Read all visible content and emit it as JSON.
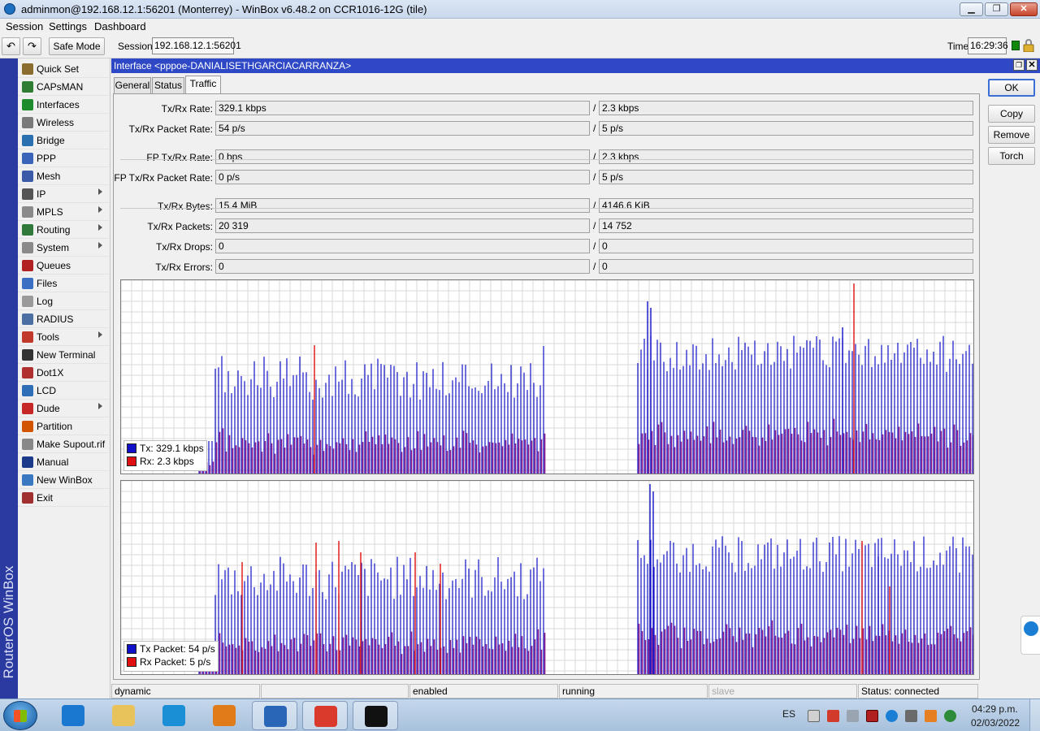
{
  "window": {
    "title": "adminmon@192.168.12.1:56201 (Monterrey) - WinBox v6.48.2 on CCR1016-12G (tile)",
    "min_label": "▁",
    "max_label": "❐",
    "close_label": "✕"
  },
  "menu": {
    "items": [
      "Session",
      "Settings",
      "Dashboard"
    ]
  },
  "toolbar": {
    "undo_label": "↶",
    "redo_label": "↷",
    "safe_mode_label": "Safe Mode",
    "session_label": "Session:",
    "session_value": "192.168.12.1:56201",
    "time_label": "Time:",
    "time_value": "16:29:36"
  },
  "brand": "RouterOS WinBox",
  "sidebar": {
    "items": [
      {
        "label": "Quick Set",
        "icon": "wand-icon",
        "color": "#8a6d2f",
        "submenu": false
      },
      {
        "label": "CAPsMAN",
        "icon": "capsman-icon",
        "color": "#2e7d32",
        "submenu": false
      },
      {
        "label": "Interfaces",
        "icon": "interfaces-icon",
        "color": "#1e8c2c",
        "submenu": false
      },
      {
        "label": "Wireless",
        "icon": "wireless-icon",
        "color": "#7a7a7a",
        "submenu": false
      },
      {
        "label": "Bridge",
        "icon": "bridge-icon",
        "color": "#2a6fb0",
        "submenu": false
      },
      {
        "label": "PPP",
        "icon": "ppp-icon",
        "color": "#3a64b8",
        "submenu": false
      },
      {
        "label": "Mesh",
        "icon": "mesh-icon",
        "color": "#3b5ba8",
        "submenu": false
      },
      {
        "label": "IP",
        "icon": "ip-icon",
        "color": "#555555",
        "submenu": true
      },
      {
        "label": "MPLS",
        "icon": "mpls-icon",
        "color": "#8a8a8a",
        "submenu": true
      },
      {
        "label": "Routing",
        "icon": "routing-icon",
        "color": "#2f7a3a",
        "submenu": true
      },
      {
        "label": "System",
        "icon": "system-icon",
        "color": "#8a8a8a",
        "submenu": true
      },
      {
        "label": "Queues",
        "icon": "queues-icon",
        "color": "#b22222",
        "submenu": false
      },
      {
        "label": "Files",
        "icon": "files-icon",
        "color": "#3a6fc4",
        "submenu": false
      },
      {
        "label": "Log",
        "icon": "log-icon",
        "color": "#9a9a9a",
        "submenu": false
      },
      {
        "label": "RADIUS",
        "icon": "radius-icon",
        "color": "#4a6fa0",
        "submenu": false
      },
      {
        "label": "Tools",
        "icon": "tools-icon",
        "color": "#c0392b",
        "submenu": true
      },
      {
        "label": "New Terminal",
        "icon": "terminal-icon",
        "color": "#333333",
        "submenu": false
      },
      {
        "label": "Dot1X",
        "icon": "dot1x-icon",
        "color": "#b03030",
        "submenu": false
      },
      {
        "label": "LCD",
        "icon": "lcd-icon",
        "color": "#2f6fb7",
        "submenu": false
      },
      {
        "label": "Dude",
        "icon": "dude-icon",
        "color": "#c62828",
        "submenu": true
      },
      {
        "label": "Partition",
        "icon": "partition-icon",
        "color": "#d35400",
        "submenu": false
      },
      {
        "label": "Make Supout.rif",
        "icon": "supout-icon",
        "color": "#888888",
        "submenu": false
      },
      {
        "label": "Manual",
        "icon": "manual-icon",
        "color": "#1b3b8a",
        "submenu": false
      },
      {
        "label": "New WinBox",
        "icon": "winbox-icon",
        "color": "#3a78c2",
        "submenu": false
      },
      {
        "label": "Exit",
        "icon": "exit-icon",
        "color": "#a03030",
        "submenu": false
      }
    ]
  },
  "interface_window": {
    "title": "Interface <pppoe-DANIALISETHGARCIACARRANZA>",
    "restore_label": "❐",
    "close_label": "✕",
    "tabs": [
      "General",
      "Status",
      "Traffic"
    ],
    "active_tab": "Traffic",
    "fields": [
      {
        "label": "Tx/Rx Rate:",
        "tx": "329.1 kbps",
        "rx": "2.3 kbps"
      },
      {
        "label": "Tx/Rx Packet Rate:",
        "tx": "54 p/s",
        "rx": "5 p/s"
      },
      {
        "label": "FP Tx/Rx Rate:",
        "tx": "0 bps",
        "rx": "2.3 kbps"
      },
      {
        "label": "FP Tx/Rx Packet Rate:",
        "tx": "0 p/s",
        "rx": "5 p/s"
      },
      {
        "label": "Tx/Rx Bytes:",
        "tx": "15.4 MiB",
        "rx": "4146.6 KiB"
      },
      {
        "label": "Tx/Rx Packets:",
        "tx": "20 319",
        "rx": "14 752"
      },
      {
        "label": "Tx/Rx Drops:",
        "tx": "0",
        "rx": "0"
      },
      {
        "label": "Tx/Rx Errors:",
        "tx": "0",
        "rx": "0"
      }
    ],
    "separator": "/",
    "traffic_legend": {
      "tx": "Tx:  329.1 kbps",
      "rx": "Rx:  2.3 kbps"
    },
    "packet_legend": {
      "tx": "Tx Packet:  54 p/s",
      "rx": "Rx Packet:  5 p/s"
    },
    "buttons": [
      "OK",
      "Copy",
      "Remove",
      "Torch"
    ],
    "status": [
      "dynamic",
      "",
      "enabled",
      "running",
      "slave",
      "Status: connected"
    ],
    "colors": {
      "tx": "#1010c8",
      "rx": "#e01010",
      "title": "#2e48c6"
    }
  },
  "taskbar": {
    "apps": [
      {
        "name": "ie-icon",
        "color": "#1a78d0",
        "open": false
      },
      {
        "name": "explorer-icon",
        "color": "#e8c25a",
        "open": false
      },
      {
        "name": "edge-icon",
        "color": "#1b8fd6",
        "open": false
      },
      {
        "name": "media-icon",
        "color": "#e07b1a",
        "open": false
      },
      {
        "name": "winbox-icon",
        "color": "#2a66b8",
        "open": true
      },
      {
        "name": "chrome-icon",
        "color": "#d93a2b",
        "open": true
      },
      {
        "name": "cmd-icon",
        "color": "#111111",
        "open": true
      }
    ],
    "lang": "ES",
    "clock_time": "04:29 p.m.",
    "clock_date": "02/03/2022"
  }
}
